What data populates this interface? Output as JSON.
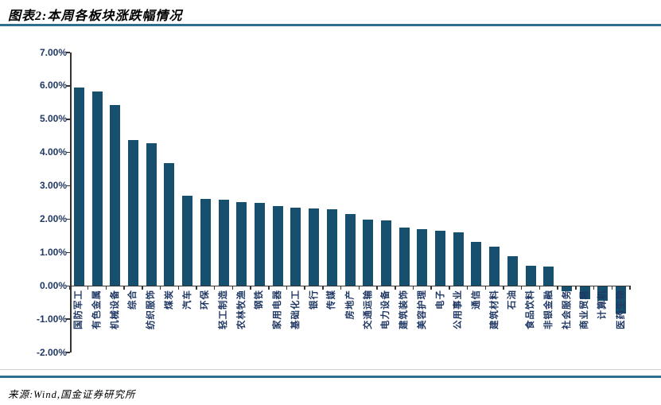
{
  "header": {
    "title": "图表2:本周各板块涨跌幅情况"
  },
  "footer": {
    "source": "来源:Wind,国金证券研究所"
  },
  "colors": {
    "accent_rule": "#2e6e8e",
    "bar": "#17506e",
    "axis_text": "#203864",
    "axis_line": "#333333"
  },
  "chart_data": {
    "type": "bar",
    "title": "本周各板块涨跌幅情况",
    "xlabel": "",
    "ylabel": "",
    "ylim": [
      -2,
      7
    ],
    "ytick_step": 1,
    "ytick_format": "0.00%",
    "grid": false,
    "legend": "none",
    "categories": [
      "国防军工",
      "有色金属",
      "机械设备",
      "综合",
      "纺织服饰",
      "煤炭",
      "汽车",
      "环保",
      "轻工制造",
      "农林牧渔",
      "钢铁",
      "家用电器",
      "基础化工",
      "银行",
      "传媒",
      "房地产",
      "交通运输",
      "电力设备",
      "建筑装饰",
      "美容护理",
      "电子",
      "公用事业",
      "通信",
      "建筑材料",
      "石油",
      "食品饮料",
      "非银金融",
      "社会服务",
      "商业贸易",
      "计算机",
      "医药生物"
    ],
    "values": [
      5.95,
      5.82,
      5.42,
      4.37,
      4.27,
      3.68,
      2.7,
      2.6,
      2.58,
      2.52,
      2.49,
      2.39,
      2.35,
      2.33,
      2.31,
      2.16,
      2.0,
      1.96,
      1.76,
      1.7,
      1.65,
      1.61,
      1.31,
      1.18,
      0.9,
      0.61,
      0.57,
      -0.15,
      -0.38,
      -0.42,
      -0.82
    ]
  }
}
